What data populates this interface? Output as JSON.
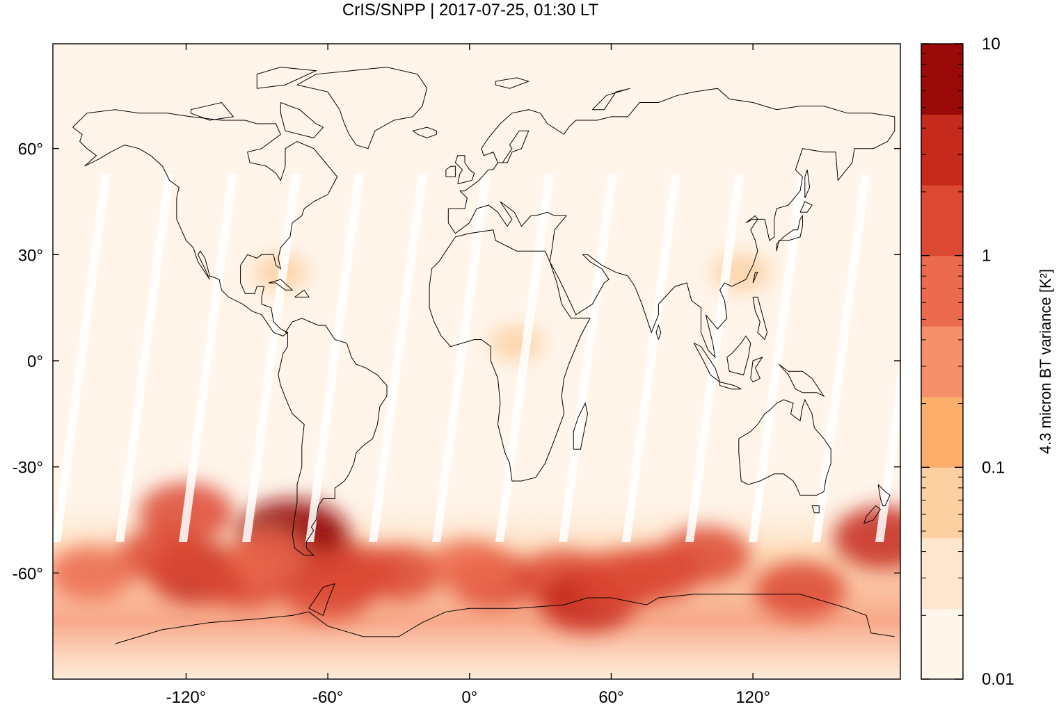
{
  "chart_data": {
    "type": "heatmap",
    "title": "CrIS/SNPP | 2017-07-25, 01:30 LT",
    "xlabel": "",
    "ylabel": "",
    "xlim": [
      -180,
      180
    ],
    "ylim": [
      -90,
      90
    ],
    "x_ticks": [
      -120,
      -60,
      0,
      60,
      120
    ],
    "x_tick_labels": [
      "-120°",
      "-60°",
      "0°",
      "60°",
      "120°"
    ],
    "y_ticks": [
      60,
      30,
      0,
      -30,
      -60
    ],
    "y_tick_labels": [
      "60°",
      "30°",
      "0°",
      "-30°",
      "-60°"
    ],
    "grid": false,
    "colorbar": {
      "label": "4.3 micron BT variance [K²]",
      "scale": "log",
      "range": [
        0.01,
        10
      ],
      "tick_labels": [
        "10",
        "1",
        "0.1",
        "0.01"
      ],
      "tick_values": [
        10,
        1,
        0.1,
        0.01
      ],
      "levels": [
        "#fff5eb",
        "#fee6ce",
        "#fdd0a2",
        "#fdae6b",
        "#fd8d3c",
        "#f16913",
        "#e6553a",
        "#d03a22",
        "#a50f15"
      ]
    },
    "colors": [
      "#fff5eb",
      "#fee6ce",
      "#fdd0a2",
      "#fdae6b",
      "#f5906a",
      "#ec6b4f",
      "#dc4832",
      "#c62a1c",
      "#990a09"
    ],
    "hotspots": [
      {
        "lon": -75,
        "lat": -49,
        "value": 10
      },
      {
        "lon": -70,
        "lat": -55,
        "value": 6
      },
      {
        "lon": -120,
        "lat": -43,
        "value": 2
      },
      {
        "lon": -115,
        "lat": -60,
        "value": 3
      },
      {
        "lon": -130,
        "lat": -55,
        "value": 1
      },
      {
        "lon": -95,
        "lat": -62,
        "value": 1.5
      },
      {
        "lon": -60,
        "lat": -65,
        "value": 2
      },
      {
        "lon": -50,
        "lat": -60,
        "value": 1.5
      },
      {
        "lon": -30,
        "lat": -60,
        "value": 1
      },
      {
        "lon": 10,
        "lat": -62,
        "value": 1.2
      },
      {
        "lon": 40,
        "lat": -62,
        "value": 2
      },
      {
        "lon": 50,
        "lat": -68,
        "value": 2.5
      },
      {
        "lon": 65,
        "lat": -62,
        "value": 2
      },
      {
        "lon": 80,
        "lat": -60,
        "value": 1
      },
      {
        "lon": 100,
        "lat": -55,
        "value": 1.2
      },
      {
        "lon": 140,
        "lat": -65,
        "value": 1.5
      },
      {
        "lon": 175,
        "lat": -50,
        "value": 3
      },
      {
        "lon": -160,
        "lat": -60,
        "value": 0.8
      },
      {
        "lon": 0,
        "lat": -58,
        "value": 0.7
      },
      {
        "lon": -85,
        "lat": -55,
        "value": 0.6
      },
      {
        "lon": 115,
        "lat": 25,
        "value": 0.08
      },
      {
        "lon": 20,
        "lat": 5,
        "value": 0.05
      },
      {
        "lon": -80,
        "lat": 25,
        "value": 0.06
      }
    ]
  }
}
